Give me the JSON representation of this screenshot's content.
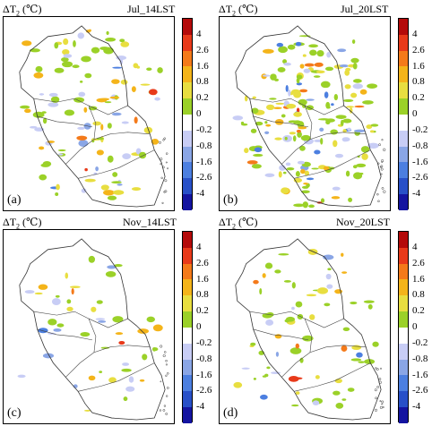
{
  "colorbar": {
    "ticks": [
      "4",
      "2.6",
      "1.6",
      "0.8",
      "0.2",
      "0",
      "-0.2",
      "-0.8",
      "-1.6",
      "-2.6",
      "-4"
    ],
    "colors": [
      "#b40a0a",
      "#e83a1a",
      "#f47a1a",
      "#f4b41a",
      "#e8de40",
      "#9bd128",
      "#ffffff",
      "#c8cdf5",
      "#8aa6e6",
      "#4c7fe0",
      "#2850c8",
      "#1414a0"
    ]
  },
  "panels": [
    {
      "var": "ΔT",
      "sub": "2",
      "unit": "(℃)",
      "time": "Jul_14LST",
      "label": "(a)"
    },
    {
      "var": "ΔT",
      "sub": "2",
      "unit": "(℃)",
      "time": "Jul_20LST",
      "label": "(b)"
    },
    {
      "var": "ΔT",
      "sub": "2",
      "unit": "(℃)",
      "time": "Nov_14LST",
      "label": "(c)"
    },
    {
      "var": "ΔT",
      "sub": "2",
      "unit": "(℃)",
      "time": "Nov_20LST",
      "label": "(d)"
    }
  ]
}
